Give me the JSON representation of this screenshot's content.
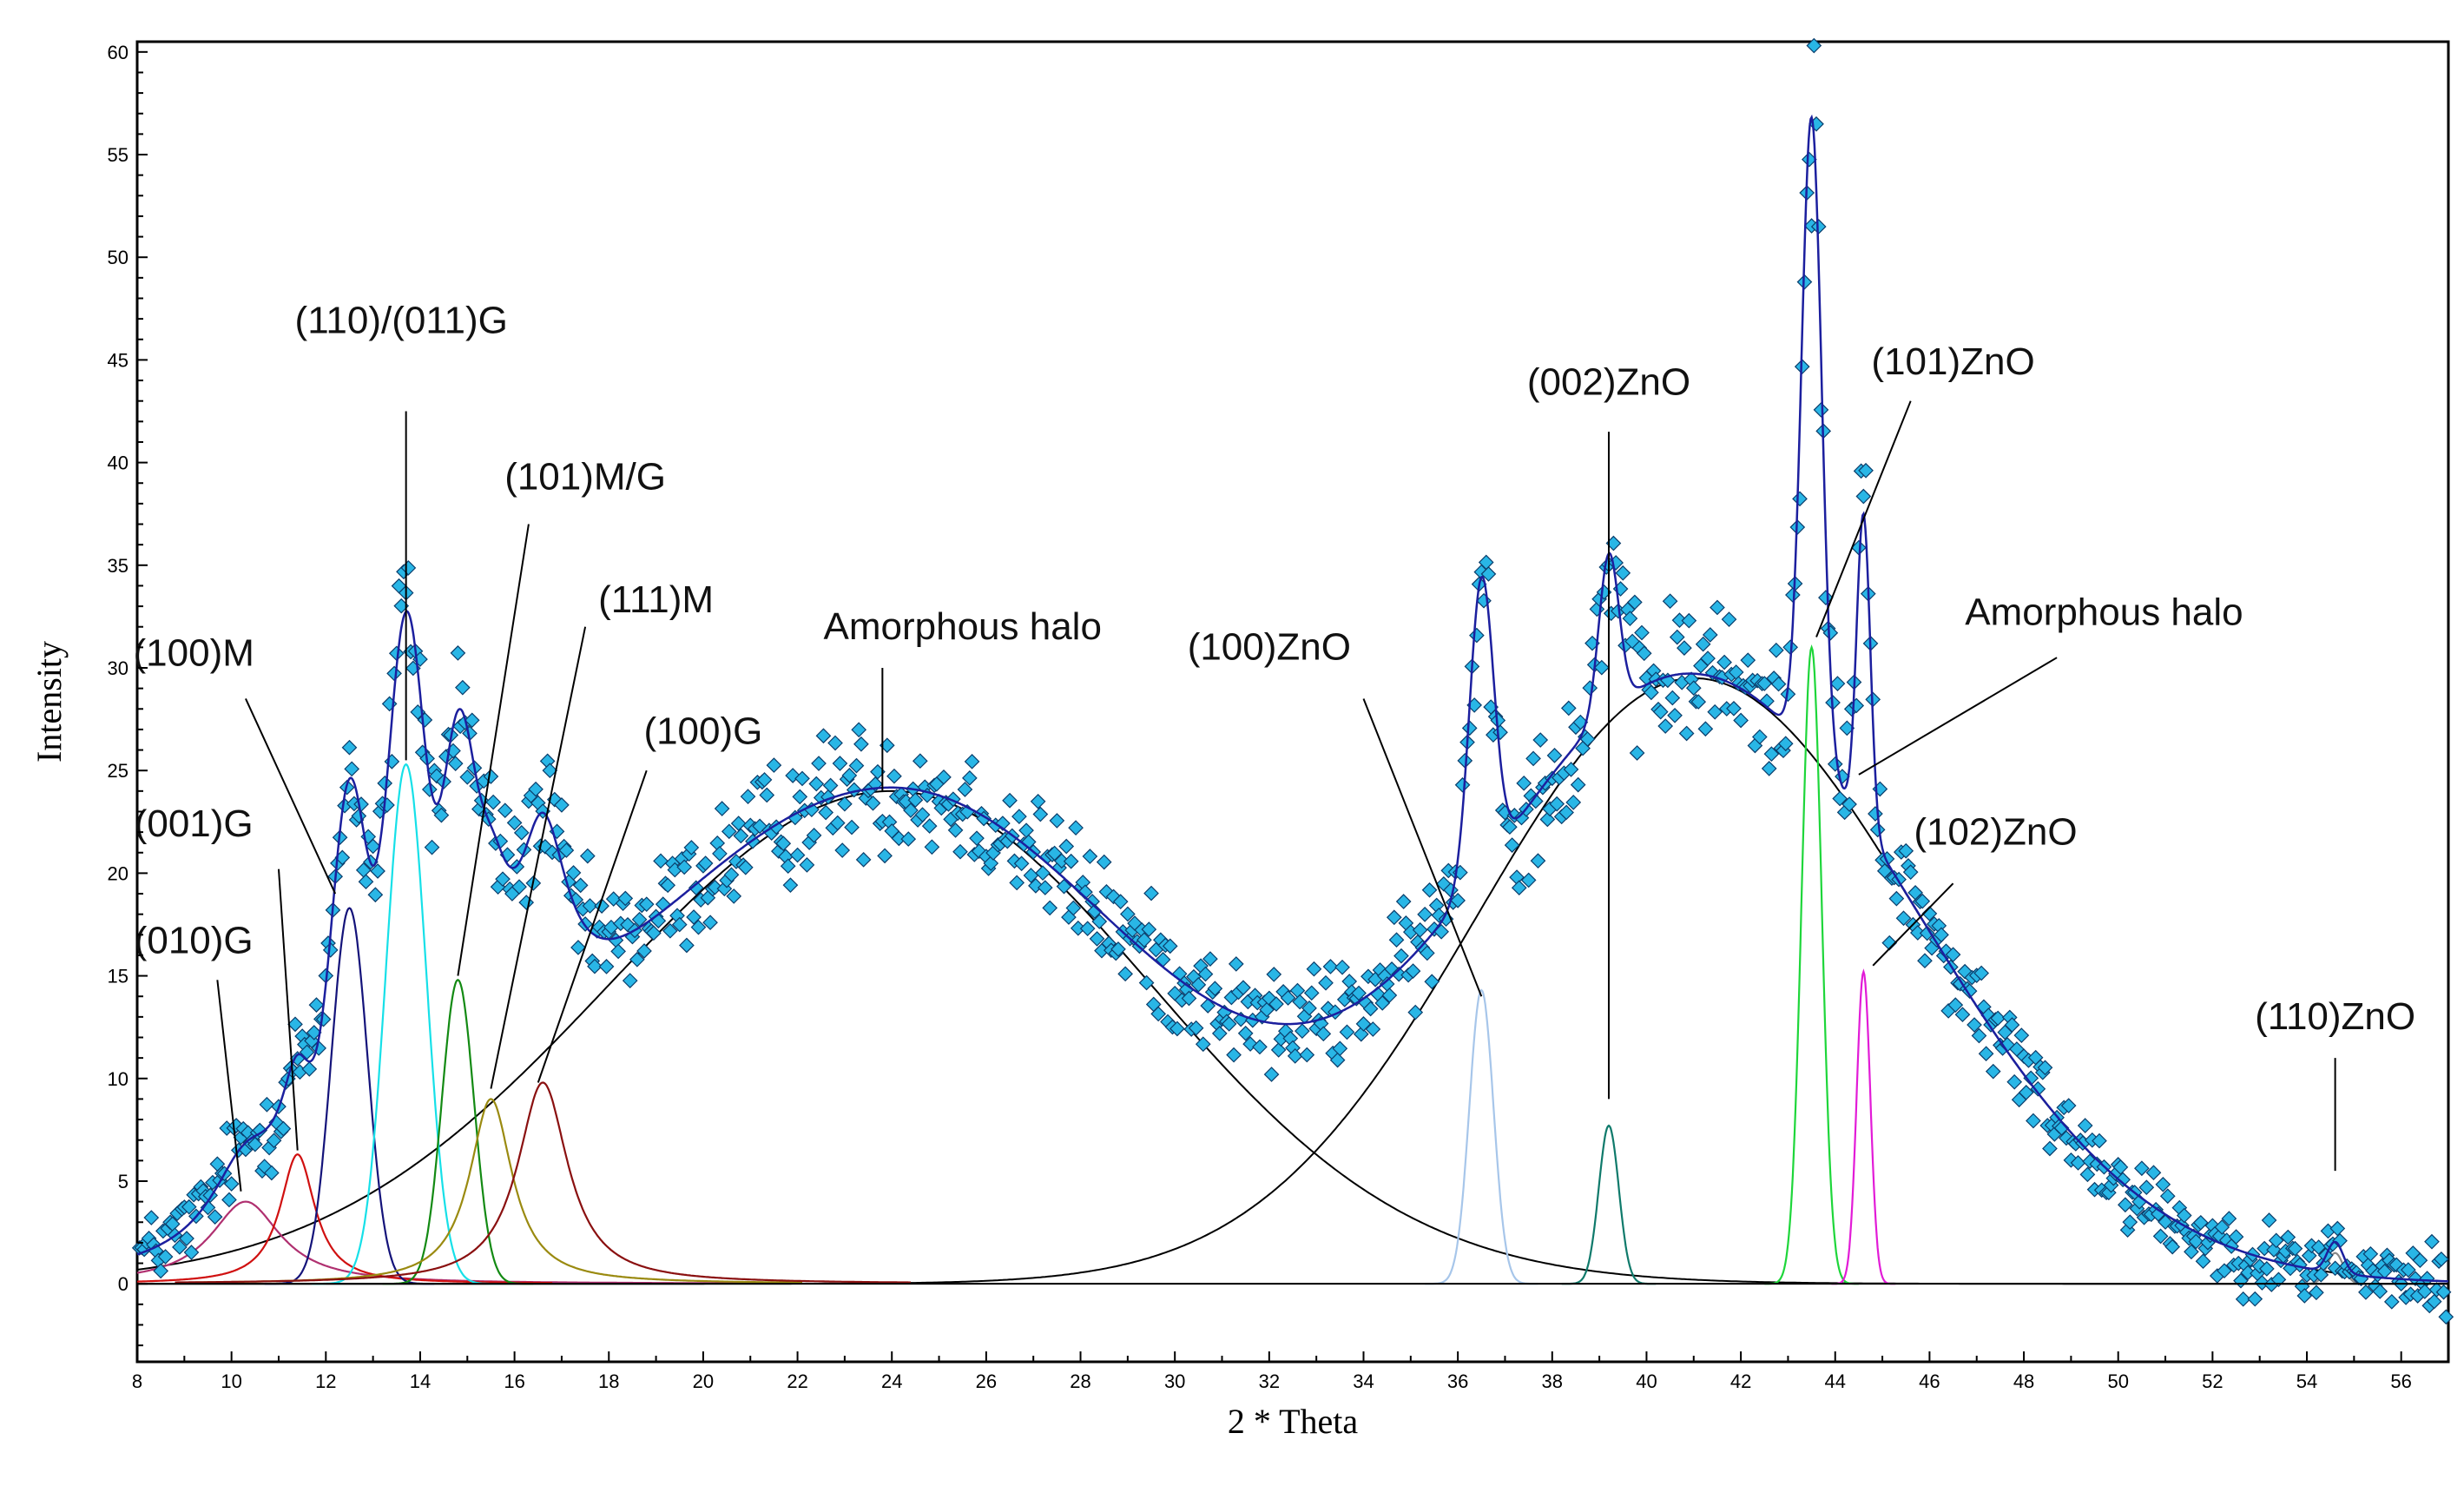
{
  "chart_data": {
    "type": "line",
    "title": "",
    "xlabel": "2 * Theta",
    "ylabel": "Intensity",
    "xlim": [
      8,
      57
    ],
    "ylim": [
      -3.8,
      60.5
    ],
    "grid": false,
    "legend": "none",
    "xticks": [
      8,
      10,
      12,
      14,
      16,
      18,
      20,
      22,
      24,
      26,
      28,
      30,
      32,
      34,
      36,
      38,
      40,
      42,
      44,
      46,
      48,
      50,
      52,
      54,
      56
    ],
    "yticks": [
      0,
      5,
      10,
      15,
      20,
      25,
      30,
      35,
      40,
      45,
      50,
      55,
      60
    ],
    "colors": {
      "points": "#29b6e6",
      "points_edge": "#0a3d6b",
      "fit": "#1c1f9e",
      "halo": "#000000",
      "baseline": "#000000"
    },
    "halos": [
      {
        "name": "Amorphous halo 1",
        "center": 24.0,
        "amplitude": 24.0,
        "sigma_left": 6.0,
        "sigma_right": 5.5,
        "color": "#000000"
      },
      {
        "name": "Amorphous halo 2",
        "center": 41.0,
        "amplitude": 29.5,
        "sigma_left": 4.6,
        "sigma_right": 4.8,
        "color": "#000000"
      }
    ],
    "peaks": [
      {
        "label": "(010)G",
        "center": 10.3,
        "height": 4.0,
        "width": 0.9,
        "shape": "lorentzian",
        "color": "#b03070"
      },
      {
        "label": "(001)G",
        "center": 11.4,
        "height": 6.3,
        "width": 0.45,
        "shape": "lorentzian",
        "color": "#d01010"
      },
      {
        "label": "(100)M",
        "center": 12.5,
        "height": 18.3,
        "width": 0.45,
        "shape": "gaussian",
        "color": "#14137a"
      },
      {
        "label": "(110)/(011)G",
        "center": 13.7,
        "height": 25.3,
        "width": 0.5,
        "shape": "gaussian",
        "color": "#16e0e8"
      },
      {
        "label": "(101)M/G",
        "center": 14.8,
        "height": 14.8,
        "width": 0.4,
        "shape": "gaussian",
        "color": "#138a13"
      },
      {
        "label": "(111)M",
        "center": 15.5,
        "height": 9.0,
        "width": 0.55,
        "shape": "lorentzian",
        "color": "#9a8a10"
      },
      {
        "label": "(100)G",
        "center": 16.6,
        "height": 9.8,
        "width": 0.65,
        "shape": "lorentzian",
        "color": "#8a1010"
      },
      {
        "label": "(100)ZnO",
        "center": 36.5,
        "height": 14.3,
        "width": 0.3,
        "shape": "gaussian",
        "color": "#a7c6ea"
      },
      {
        "label": "(002)ZnO",
        "center": 39.2,
        "height": 7.7,
        "width": 0.25,
        "shape": "gaussian",
        "color": "#0f7a6b"
      },
      {
        "label": "(101)ZnO",
        "center": 43.5,
        "height": 31.0,
        "width": 0.25,
        "shape": "gaussian",
        "color": "#1ed63a"
      },
      {
        "label": "(102)ZnO",
        "center": 44.6,
        "height": 15.2,
        "width": 0.17,
        "shape": "gaussian",
        "color": "#e21bd7"
      },
      {
        "label": "(110)ZnO",
        "center": 54.6,
        "height": 1.5,
        "width": 0.2,
        "shape": "gaussian",
        "color": "#888888"
      }
    ],
    "observed_series": {
      "name": "Observed",
      "marker": "diamond",
      "x_start": 8.0,
      "x_end": 57.0,
      "x_step": 0.05,
      "noise_amplitude": 1.4
    },
    "annotations": [
      {
        "text": "(110)/(011)G",
        "x": 13.6,
        "y": 46.3,
        "arrow_to": [
          13.7,
          25.5
        ],
        "line_from": [
          13.7,
          42.5
        ]
      },
      {
        "text": "(101)M/G",
        "x": 17.5,
        "y": 38.7,
        "arrow_to": [
          14.8,
          15.0
        ],
        "line_from": [
          16.3,
          37.0
        ]
      },
      {
        "text": "(111)M",
        "x": 19.0,
        "y": 32.7,
        "arrow_to": [
          15.5,
          9.5
        ],
        "line_from": [
          17.5,
          32.0
        ]
      },
      {
        "text": "(100)M",
        "x": 9.2,
        "y": 30.1,
        "arrow_to": [
          12.2,
          19.0
        ],
        "line_from": [
          10.3,
          28.5
        ]
      },
      {
        "text": "(100)G",
        "x": 20.0,
        "y": 26.3,
        "arrow_to": [
          16.5,
          9.8
        ],
        "line_from": [
          18.8,
          25.0
        ]
      },
      {
        "text": "(001)G",
        "x": 9.2,
        "y": 21.8,
        "arrow_to": [
          11.4,
          6.5
        ],
        "line_from": [
          11.0,
          20.2
        ]
      },
      {
        "text": "(010)G",
        "x": 9.2,
        "y": 16.1,
        "arrow_to": [
          10.2,
          4.5
        ],
        "line_from": [
          9.7,
          14.8
        ]
      },
      {
        "text": "Amorphous halo",
        "x": 25.5,
        "y": 31.4,
        "arrow_to": [
          23.8,
          24.0
        ],
        "line_from": [
          23.8,
          30.0
        ]
      },
      {
        "text": "(100)ZnO",
        "x": 32.0,
        "y": 30.4,
        "arrow_to": [
          36.5,
          14.0
        ],
        "line_from": [
          34.0,
          28.5
        ]
      },
      {
        "text": "(002)ZnO",
        "x": 39.2,
        "y": 43.3,
        "arrow_to": [
          39.2,
          9.0
        ],
        "line_from": [
          39.2,
          41.5
        ]
      },
      {
        "text": "(101)ZnO",
        "x": 46.5,
        "y": 44.3,
        "arrow_to": [
          43.6,
          31.5
        ],
        "line_from": [
          45.6,
          43.0
        ]
      },
      {
        "text": "Amorphous halo",
        "x": 49.7,
        "y": 32.1,
        "arrow_to": [
          44.5,
          24.8
        ],
        "line_from": [
          48.7,
          30.5
        ]
      },
      {
        "text": "(102)ZnO",
        "x": 47.4,
        "y": 21.4,
        "arrow_to": [
          44.8,
          15.5
        ],
        "line_from": [
          46.5,
          19.5
        ]
      },
      {
        "text": "(110)ZnO",
        "x": 54.6,
        "y": 12.4,
        "arrow_to": [
          54.6,
          5.5
        ],
        "line_from": [
          54.6,
          11.0
        ]
      }
    ]
  }
}
